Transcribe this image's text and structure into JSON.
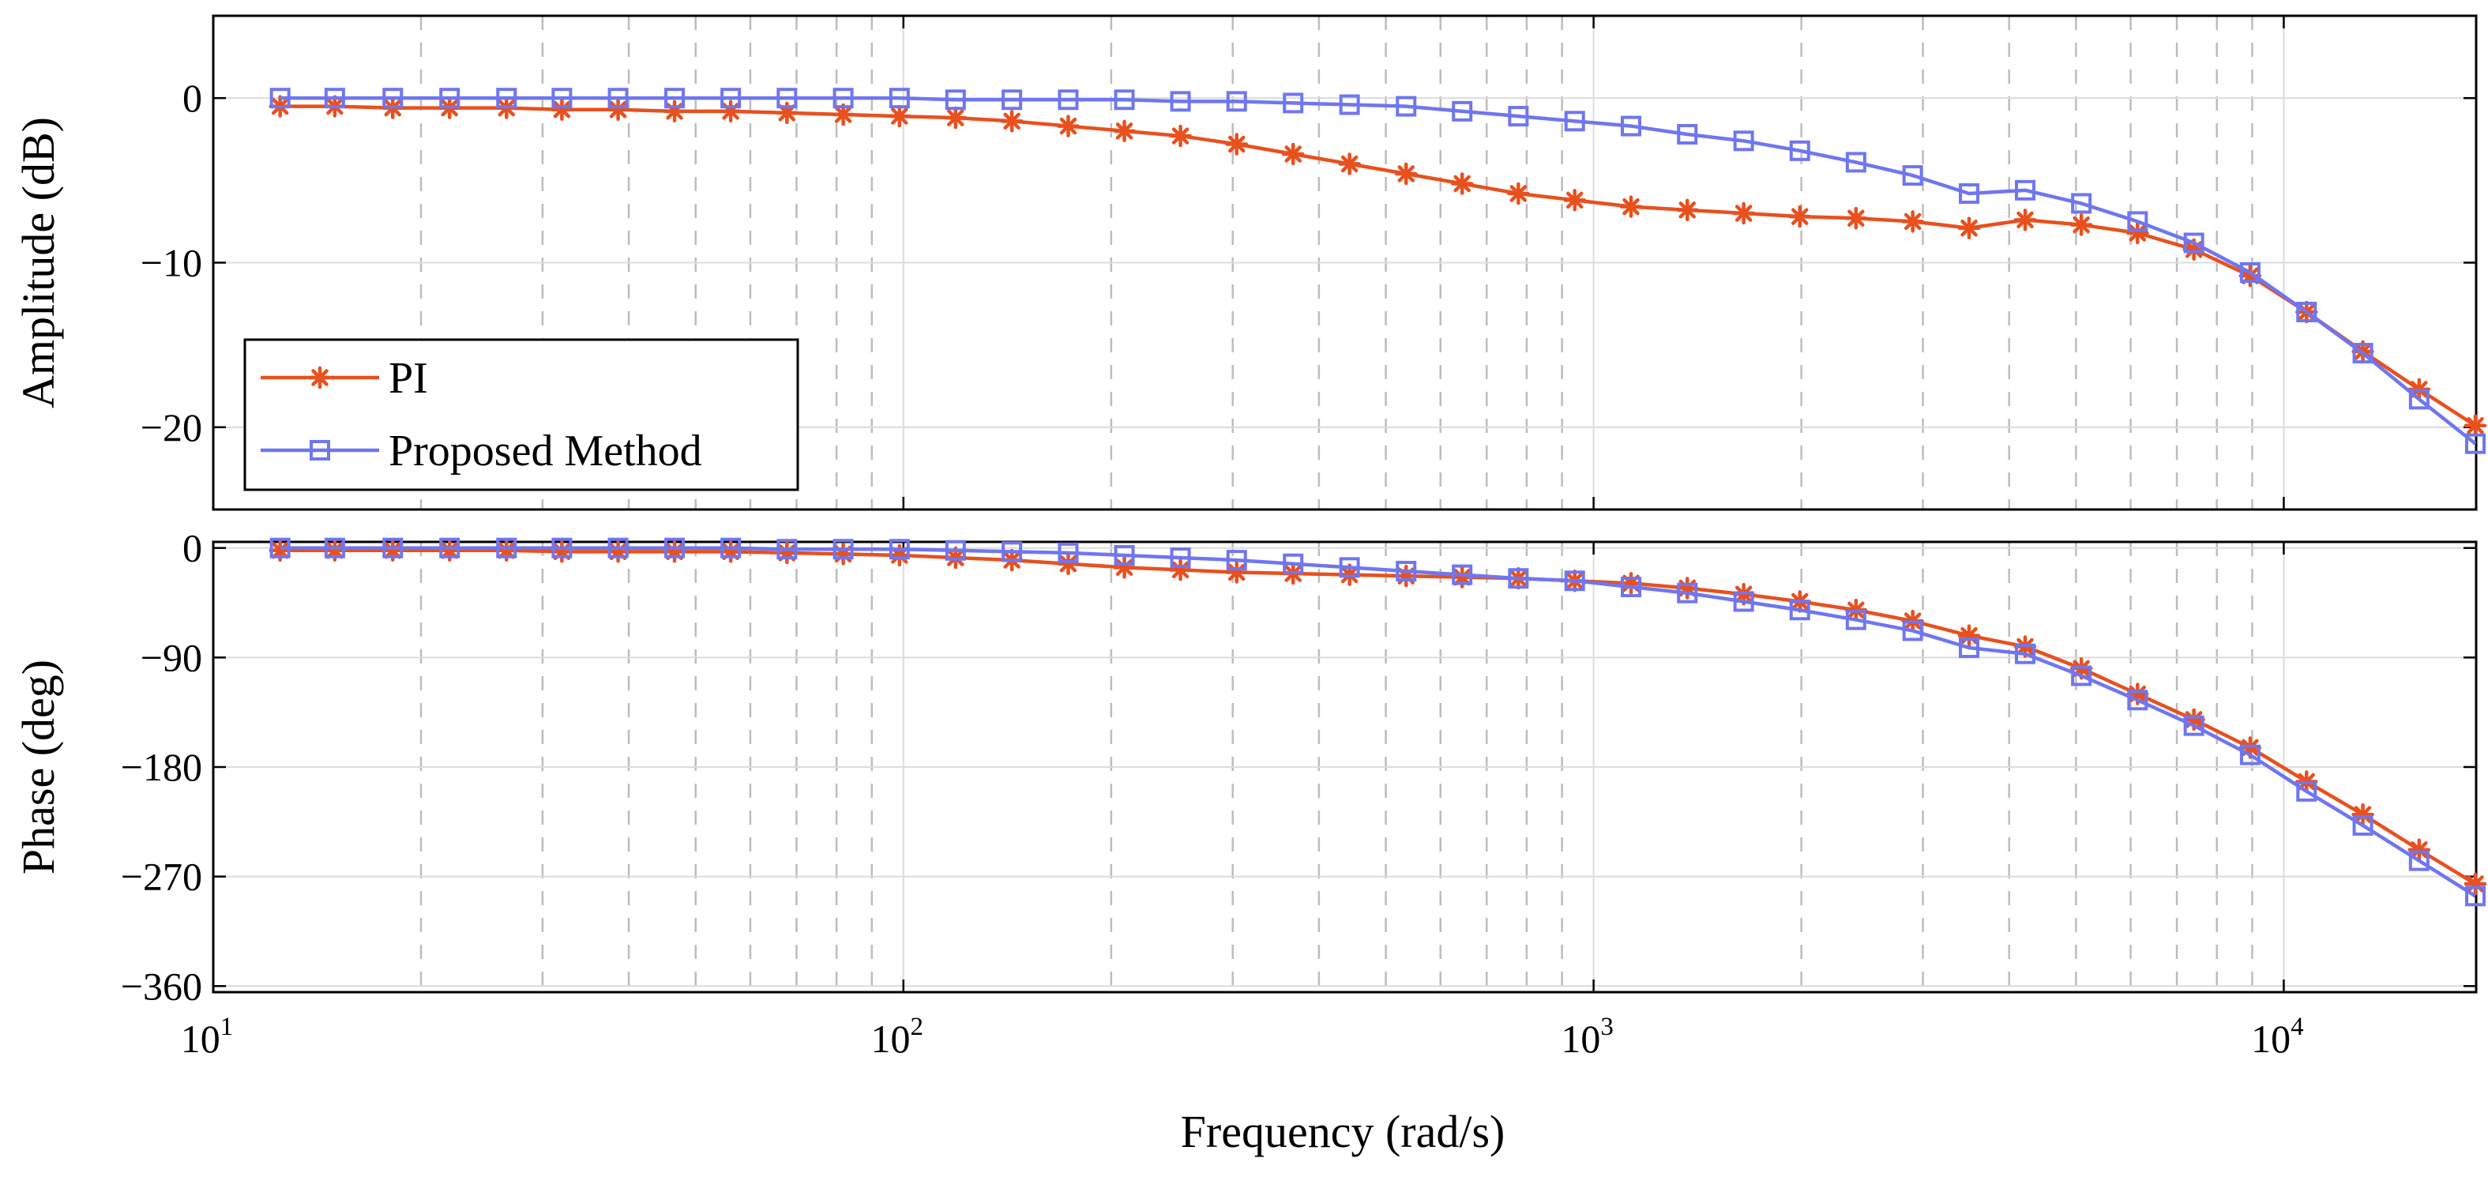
{
  "chart_data": {
    "type": "line",
    "xscale": "log",
    "xlim": [
      10,
      19000
    ],
    "xlabel": "Frequency  (rad/s)",
    "xticks": [
      {
        "value": 10,
        "base": "10",
        "exp": "1"
      },
      {
        "value": 100,
        "base": "10",
        "exp": "2"
      },
      {
        "value": 1000,
        "base": "10",
        "exp": "3"
      },
      {
        "value": 10000,
        "base": "10",
        "exp": "4"
      }
    ],
    "grid": true,
    "legend_placement": "lower-left",
    "x": [
      12.5,
      15,
      18.2,
      22,
      26.6,
      32,
      38.6,
      46.6,
      56.2,
      67.8,
      81.8,
      98.7,
      119,
      143.6,
      173.3,
      209,
      252,
      304,
      367,
      443,
      535,
      645,
      778,
      939,
      1133,
      1367,
      1650,
      1990,
      2400,
      2900,
      3500,
      4220,
      5090,
      6140,
      7410,
      8940,
      10790,
      13020,
      15710,
      18950
    ],
    "series_style": [
      {
        "color": "#e8501e",
        "marker": "asterisk"
      },
      {
        "color": "#6f76f0",
        "marker": "square"
      }
    ],
    "panels": [
      {
        "ylabel": "Amplitude (dB)",
        "ylim": [
          -25,
          5
        ],
        "yticks": [
          {
            "value": 0,
            "label": "0"
          },
          {
            "value": -10,
            "label": "−10"
          },
          {
            "value": -20,
            "label": "−20"
          }
        ],
        "series": [
          {
            "name": "PI",
            "values": [
              -0.5,
              -0.5,
              -0.6,
              -0.6,
              -0.6,
              -0.7,
              -0.7,
              -0.8,
              -0.8,
              -0.9,
              -1.0,
              -1.1,
              -1.2,
              -1.4,
              -1.7,
              -2.0,
              -2.3,
              -2.8,
              -3.4,
              -4.0,
              -4.6,
              -5.2,
              -5.8,
              -6.2,
              -6.6,
              -6.8,
              -7.0,
              -7.2,
              -7.3,
              -7.5,
              -7.9,
              -7.4,
              -7.7,
              -8.2,
              -9.2,
              -10.8,
              -13.0,
              -15.4,
              -17.7,
              -19.9
            ]
          },
          {
            "name": "Proposed Method",
            "values": [
              0.0,
              0.0,
              0.0,
              0.0,
              0.0,
              0.0,
              0.0,
              0.0,
              0.0,
              0.0,
              0.0,
              0.0,
              -0.1,
              -0.1,
              -0.1,
              -0.1,
              -0.2,
              -0.2,
              -0.3,
              -0.4,
              -0.5,
              -0.8,
              -1.1,
              -1.4,
              -1.7,
              -2.2,
              -2.6,
              -3.2,
              -3.9,
              -4.7,
              -5.8,
              -5.6,
              -6.4,
              -7.5,
              -8.8,
              -10.6,
              -13.0,
              -15.5,
              -18.3,
              -21.0
            ]
          }
        ]
      },
      {
        "ylabel": "Phase (deg)",
        "ylim": [
          -365,
          5
        ],
        "yticks": [
          {
            "value": 0,
            "label": "0"
          },
          {
            "value": -90,
            "label": "−90"
          },
          {
            "value": -180,
            "label": "−180"
          },
          {
            "value": -270,
            "label": "−270"
          },
          {
            "value": -360,
            "label": "−360"
          }
        ],
        "series": [
          {
            "name": "PI",
            "values": [
              -2,
              -2,
              -2,
              -2,
              -2,
              -3,
              -3,
              -3,
              -3,
              -4,
              -5,
              -6,
              -8,
              -10,
              -13,
              -16,
              -18,
              -20,
              -21,
              -22,
              -23,
              -24,
              -25,
              -27,
              -29,
              -33,
              -38,
              -44,
              -51,
              -60,
              -72,
              -81,
              -99,
              -120,
              -141,
              -164,
              -192,
              -219,
              -248,
              -276
            ]
          },
          {
            "name": "Proposed Method",
            "values": [
              0,
              0,
              0,
              0,
              0,
              0,
              0,
              0,
              0,
              -1,
              -1,
              -1,
              -2,
              -3,
              -4,
              -6,
              -8,
              -10,
              -13,
              -16,
              -19,
              -22,
              -25,
              -27,
              -32,
              -37,
              -44,
              -51,
              -59,
              -68,
              -82,
              -87,
              -105,
              -125,
              -146,
              -170,
              -200,
              -228,
              -257,
              -286
            ]
          }
        ]
      }
    ]
  }
}
